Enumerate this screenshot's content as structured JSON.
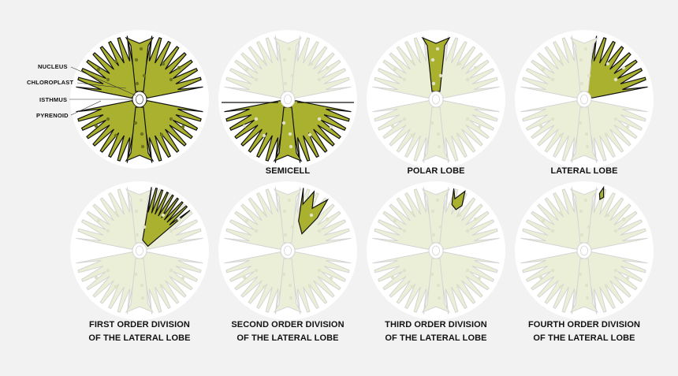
{
  "annotations": {
    "nucleus": "NUCLEUS",
    "chloroplast": "CHLOROPLAST",
    "isthmus": "ISTHMUS",
    "pyrenoid": "PYRENOID"
  },
  "panels": [
    {
      "id": "full-cell",
      "caption_lines": [],
      "highlight": "all"
    },
    {
      "id": "semicell",
      "caption_lines": [
        "SEMICELL"
      ],
      "highlight": "semicell"
    },
    {
      "id": "polar-lobe",
      "caption_lines": [
        "POLAR LOBE"
      ],
      "highlight": "polar"
    },
    {
      "id": "lateral-lobe",
      "caption_lines": [
        "LATERAL LOBE"
      ],
      "highlight": "lateral"
    },
    {
      "id": "first-order",
      "caption_lines": [
        "FIRST ORDER DIVISION",
        "OF THE LATERAL LOBE"
      ],
      "highlight": "first"
    },
    {
      "id": "second-order",
      "caption_lines": [
        "SECOND ORDER DIVISION",
        "OF THE LATERAL LOBE"
      ],
      "highlight": "second"
    },
    {
      "id": "third-order",
      "caption_lines": [
        "THIRD ORDER DIVISION",
        "OF THE LATERAL LOBE"
      ],
      "highlight": "third"
    },
    {
      "id": "fourth-order",
      "caption_lines": [
        "FOURTH ORDER DIVISION",
        "OF THE LATERAL LOBE"
      ],
      "highlight": "fourth"
    }
  ],
  "colors": {
    "background": "#f2f2f2",
    "halo": "#ffffff",
    "dim_fill": "#ecefd8",
    "dim_stroke": "#d4d4d4",
    "highlight_fill": "#aab12e",
    "highlight_stroke": "#111111",
    "pyrenoid_dark": "#6d7420",
    "pyrenoid_dim": "#dfe2c8"
  }
}
